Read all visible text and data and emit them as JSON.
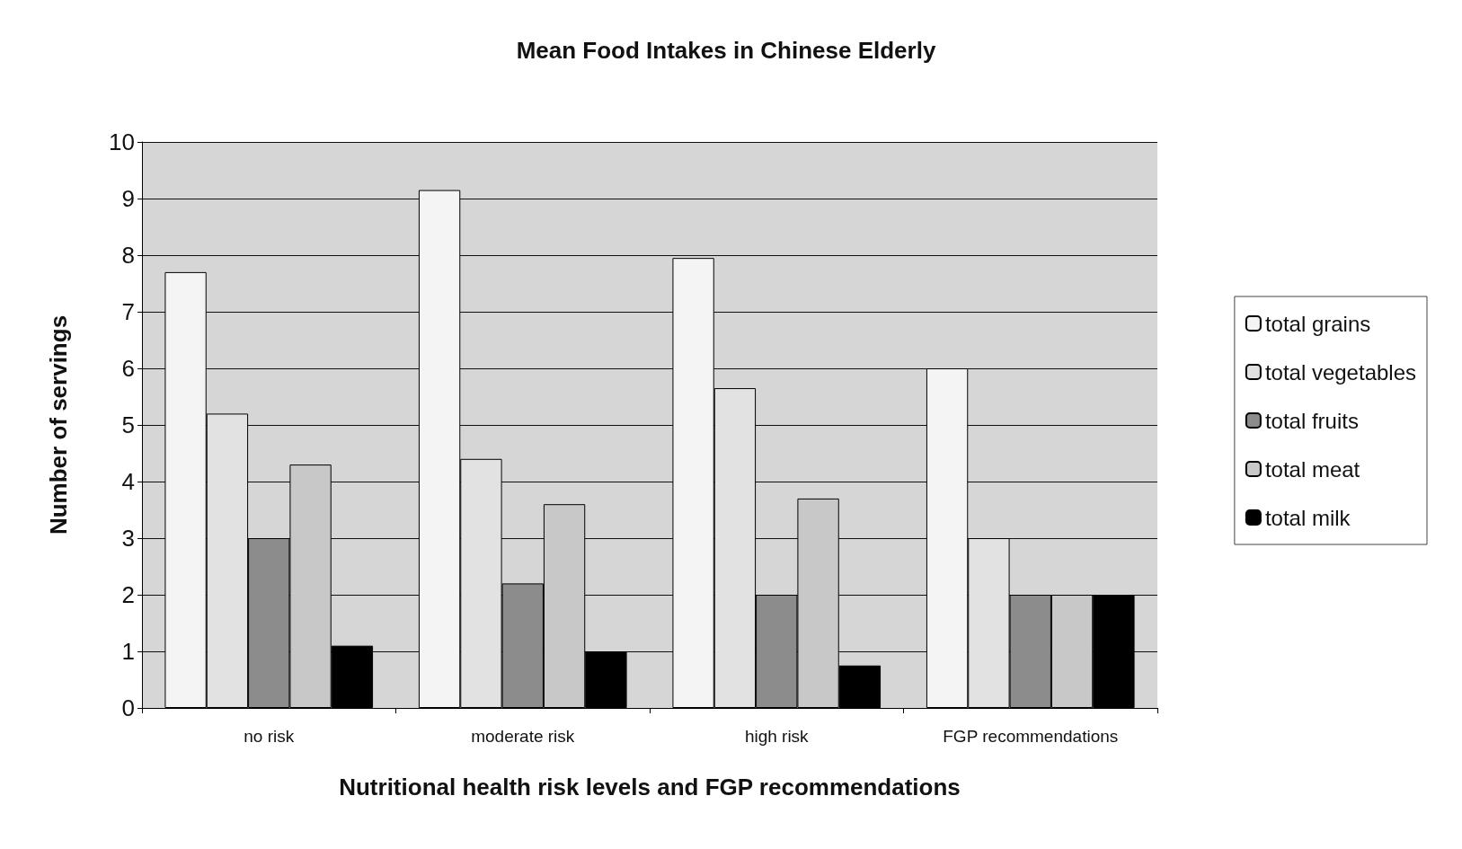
{
  "chart_data": {
    "type": "bar",
    "title": "Mean Food Intakes in Chinese Elderly",
    "xlabel": "Nutritional health risk levels and FGP recommendations",
    "ylabel": "Number of servings",
    "categories": [
      "no risk",
      "moderate risk",
      "high risk",
      "FGP recommendations"
    ],
    "series": [
      {
        "name": "total grains",
        "color": "#f4f4f4",
        "values": [
          7.7,
          9.15,
          7.95,
          6
        ]
      },
      {
        "name": "total vegetables",
        "color": "#e2e2e2",
        "values": [
          5.2,
          4.4,
          5.65,
          3
        ]
      },
      {
        "name": "total fruits",
        "color": "#8c8c8c",
        "values": [
          3.0,
          2.2,
          2.0,
          2
        ]
      },
      {
        "name": "total meat",
        "color": "#c8c8c8",
        "values": [
          4.3,
          3.6,
          3.7,
          2
        ]
      },
      {
        "name": "total milk",
        "color": "#000000",
        "values": [
          1.1,
          1.0,
          0.75,
          2
        ]
      }
    ],
    "ylim": [
      0,
      10
    ],
    "yticks": [
      0,
      1,
      2,
      3,
      4,
      5,
      6,
      7,
      8,
      9,
      10
    ],
    "grid": "y",
    "legend": "right"
  }
}
